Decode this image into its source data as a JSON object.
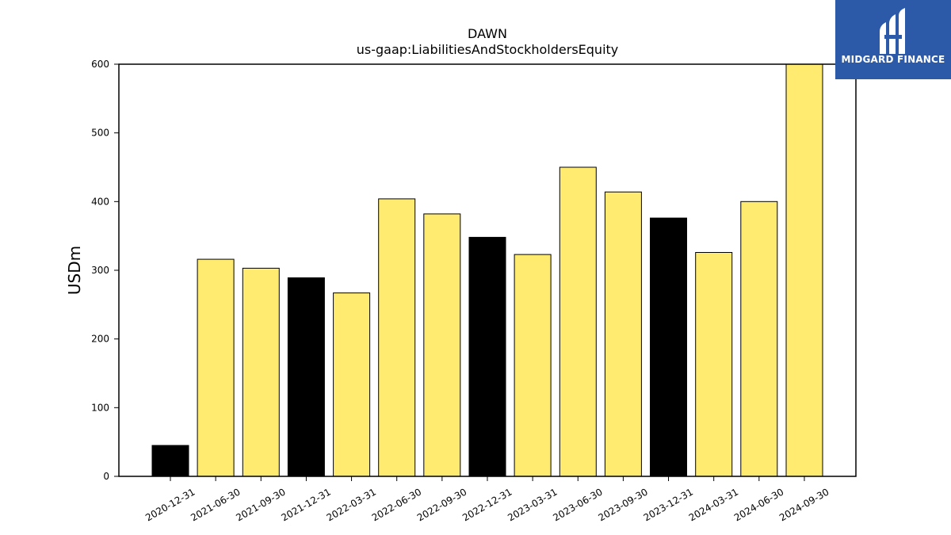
{
  "chart_data": {
    "type": "bar",
    "title": "DAWN",
    "subtitle": "us-gaap:LiabilitiesAndStockholdersEquity",
    "xlabel": "",
    "ylabel": "USDm",
    "ylim": [
      0,
      600
    ],
    "yticks": [
      0,
      100,
      200,
      300,
      400,
      500,
      600
    ],
    "categories": [
      "2020-12-31",
      "2021-06-30",
      "2021-09-30",
      "2021-12-31",
      "2022-03-31",
      "2022-06-30",
      "2022-09-30",
      "2022-12-31",
      "2023-03-31",
      "2023-06-30",
      "2023-09-30",
      "2023-12-31",
      "2024-03-31",
      "2024-06-30",
      "2024-09-30"
    ],
    "values": [
      45,
      316,
      303,
      289,
      267,
      404,
      382,
      348,
      323,
      450,
      414,
      376,
      326,
      400,
      600
    ],
    "bar_colors": [
      "#000000",
      "#ffeb70",
      "#ffeb70",
      "#000000",
      "#ffeb70",
      "#ffeb70",
      "#ffeb70",
      "#000000",
      "#ffeb70",
      "#ffeb70",
      "#ffeb70",
      "#000000",
      "#ffeb70",
      "#ffeb70",
      "#ffeb70"
    ],
    "grid": false,
    "legend": "none"
  },
  "logo": {
    "text": "MIDGARD FINANCE",
    "background": "#2d5aa8"
  }
}
